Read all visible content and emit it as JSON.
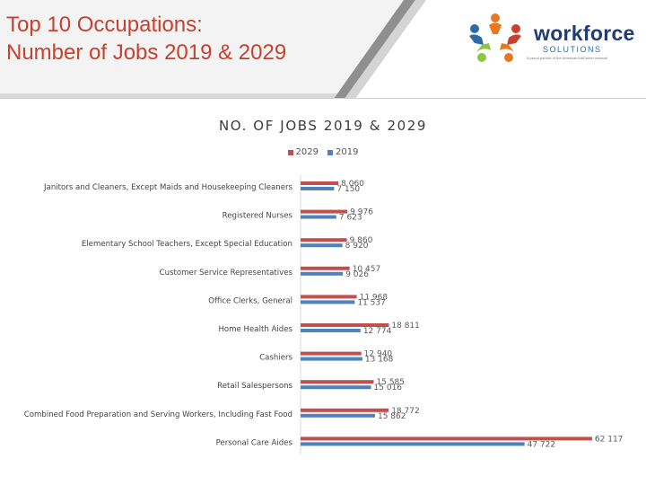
{
  "slide": {
    "title_line1": "Top 10 Occupations:",
    "title_line2": "Number of Jobs 2019 & 2029"
  },
  "logo": {
    "name": "workforce",
    "subtitle": "SOLUTIONS",
    "tagline": "A proud partner of the AmericanJobCenter network",
    "colors": [
      "#e87722",
      "#2d6aa6",
      "#c8412f",
      "#8dc63f"
    ]
  },
  "colors": {
    "title": "#c8412f",
    "series_2029": "#c0504d",
    "series_2019": "#4f81bd"
  },
  "chart_data": {
    "type": "bar",
    "orientation": "horizontal",
    "title": "NO. OF JOBS 2019 & 2029",
    "xlabel": "",
    "ylabel": "",
    "xlim": [
      0,
      65000
    ],
    "legend_position": "top",
    "categories": [
      "Janitors and Cleaners, Except Maids and Housekeeping Cleaners",
      "Registered Nurses",
      "Elementary School Teachers, Except Special Education",
      "Customer Service Representatives",
      "Office Clerks, General",
      "Home Health Aides",
      "Cashiers",
      "Retail Salespersons",
      "Combined Food Preparation and Serving Workers, Including Fast Food",
      "Personal Care Aides"
    ],
    "series": [
      {
        "name": "2029",
        "color": "#c0504d",
        "values": [
          8060,
          9976,
          9860,
          10457,
          11968,
          18811,
          12940,
          15585,
          18772,
          62117
        ],
        "labels": [
          "8 060",
          "9 976",
          "9 860",
          "10 457",
          "11 968",
          "18 811",
          "12 940",
          "15 585",
          "18 772",
          "62 117"
        ]
      },
      {
        "name": "2019",
        "color": "#4f81bd",
        "values": [
          7150,
          7623,
          8920,
          9026,
          11537,
          12774,
          13168,
          15016,
          15862,
          47722
        ],
        "labels": [
          "7 150",
          "7 623",
          "8 920",
          "9 026",
          "11 537",
          "12 774",
          "13 168",
          "15 016",
          "15 862",
          "47 722"
        ]
      }
    ]
  }
}
